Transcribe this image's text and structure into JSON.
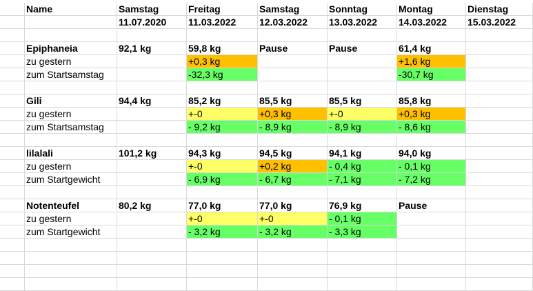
{
  "sheet": {
    "header": {
      "name_label": "Name",
      "days": [
        "Samstag",
        "Freitag",
        "Samstag",
        "Sonntag",
        "Montag",
        "Dienstag"
      ],
      "dates": [
        "11.07.2020",
        "11.03.2022",
        "12.03.2022",
        "13.03.2022",
        "14.03.2022",
        "15.03.2022"
      ]
    },
    "groups": [
      {
        "name": "Epiphaneia",
        "start": "92,1 kg",
        "values": [
          "59,8 kg",
          "Pause",
          "Pause",
          "61,4 kg",
          ""
        ],
        "row2_label": "zu gestern",
        "row2": [
          "+0,3 kg",
          "",
          "",
          "+1,6 kg",
          ""
        ],
        "row2_colors": [
          "orange",
          "",
          "",
          "orange",
          ""
        ],
        "row3_label": "zum Startsamstag",
        "row3": [
          "-32,3 kg",
          "",
          "",
          "-30,7 kg",
          ""
        ],
        "row3_colors": [
          "green",
          "",
          "",
          "green",
          ""
        ]
      },
      {
        "name": "Gili",
        "start": "94,4 kg",
        "values": [
          "85,2 kg",
          "85,5 kg",
          "85,5 kg",
          "85,8 kg",
          ""
        ],
        "row2_label": "zu gestern",
        "row2": [
          "+-0",
          "+0,3 kg",
          "+-0",
          "+0,3 kg",
          ""
        ],
        "row2_colors": [
          "yellow",
          "orange",
          "yellow",
          "orange",
          ""
        ],
        "row3_label": "zum Startsamstag",
        "row3": [
          "- 9,2 kg",
          "- 8,9 kg",
          "- 8,9 kg",
          "- 8,6 kg",
          ""
        ],
        "row3_colors": [
          "green",
          "green",
          "green",
          "green",
          ""
        ]
      },
      {
        "name": "lilalali",
        "start": "101,2 kg",
        "values": [
          "94,3 kg",
          "94,5 kg",
          "94,1 kg",
          "94,0 kg",
          ""
        ],
        "row2_label": "zu gestern",
        "row2": [
          "+-0",
          "+0,2 kg",
          "- 0,4 kg",
          "- 0,1 kg",
          ""
        ],
        "row2_colors": [
          "yellow",
          "orange",
          "green",
          "green",
          ""
        ],
        "row3_label": "zum Startgewicht",
        "row3": [
          "- 6,9 kg",
          "- 6,7 kg",
          "- 7,1 kg",
          "- 7,2 kg",
          ""
        ],
        "row3_colors": [
          "green",
          "green",
          "green",
          "green",
          ""
        ]
      },
      {
        "name": "Notenteufel",
        "start": "80,2 kg",
        "values": [
          "77,0 kg",
          "77,0 kg",
          "76,9 kg",
          "Pause",
          ""
        ],
        "row2_label": "zu gestern",
        "row2": [
          "+-0",
          "+-0",
          "- 0,1 kg",
          "",
          ""
        ],
        "row2_colors": [
          "yellow",
          "yellow",
          "green",
          "",
          ""
        ],
        "row3_label": "zum Startgewicht",
        "row3": [
          "- 3,2 kg",
          "- 3,2 kg",
          "- 3,3 kg",
          "",
          ""
        ],
        "row3_colors": [
          "green",
          "green",
          "green",
          "",
          ""
        ]
      }
    ],
    "colors": {
      "yellow": "#ffff66",
      "orange": "#ffc000",
      "green": "#66ff66",
      "gridline": "#d9d9d9"
    }
  }
}
